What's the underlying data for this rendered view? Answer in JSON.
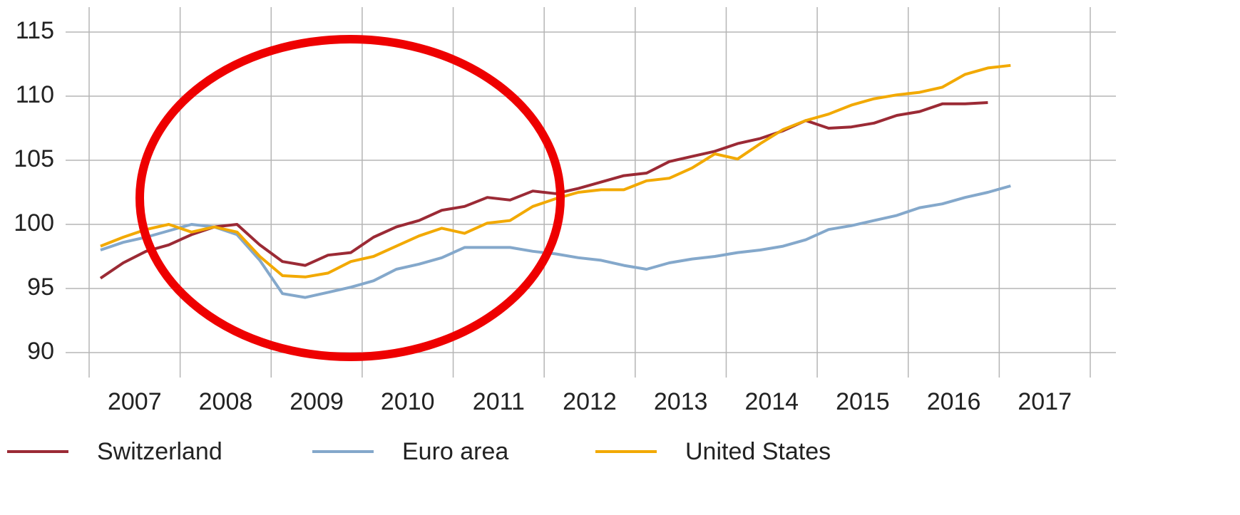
{
  "chart_data": {
    "type": "line",
    "categories": [
      "2007",
      "2008",
      "2009",
      "2010",
      "2011",
      "2012",
      "2013",
      "2014",
      "2015",
      "2016",
      "2017"
    ],
    "x": [
      2007.125,
      2007.375,
      2007.625,
      2007.875,
      2008.125,
      2008.375,
      2008.625,
      2008.875,
      2009.125,
      2009.375,
      2009.625,
      2009.875,
      2010.125,
      2010.375,
      2010.625,
      2010.875,
      2011.125,
      2011.375,
      2011.625,
      2011.875,
      2012.125,
      2012.375,
      2012.625,
      2012.875,
      2013.125,
      2013.375,
      2013.625,
      2013.875,
      2014.125,
      2014.375,
      2014.625,
      2014.875,
      2015.125,
      2015.375,
      2015.625,
      2015.875,
      2016.125,
      2016.375,
      2016.625,
      2016.875,
      2017.125
    ],
    "series": [
      {
        "name": "Switzerland",
        "color": "#9b2a35",
        "values": [
          95.8,
          97.0,
          97.9,
          98.4,
          99.2,
          99.8,
          100.0,
          98.4,
          97.1,
          96.8,
          97.6,
          97.8,
          99.0,
          99.8,
          100.3,
          101.1,
          101.4,
          102.1,
          101.9,
          102.6,
          102.4,
          102.8,
          103.3,
          103.8,
          104.0,
          104.9,
          105.3,
          105.7,
          106.3,
          106.7,
          107.3,
          108.1,
          107.5,
          107.6,
          107.9,
          108.5,
          108.8,
          109.4,
          109.4,
          109.5,
          null
        ]
      },
      {
        "name": "Euro area",
        "color": "#84a8cb",
        "values": [
          98.0,
          98.6,
          99.0,
          99.5,
          100.0,
          99.8,
          99.2,
          97.2,
          94.6,
          94.3,
          94.7,
          95.1,
          95.6,
          96.5,
          96.9,
          97.4,
          98.2,
          98.2,
          98.2,
          97.9,
          97.7,
          97.4,
          97.2,
          96.8,
          96.5,
          97.0,
          97.3,
          97.5,
          97.8,
          98.0,
          98.3,
          98.8,
          99.6,
          99.9,
          100.3,
          100.7,
          101.3,
          101.6,
          102.1,
          102.5,
          103.0
        ]
      },
      {
        "name": "United States",
        "color": "#f2a900",
        "values": [
          98.3,
          99.0,
          99.6,
          100.0,
          99.4,
          99.8,
          99.4,
          97.5,
          96.0,
          95.9,
          96.2,
          97.1,
          97.5,
          98.3,
          99.1,
          99.7,
          99.3,
          100.1,
          100.3,
          101.4,
          102.0,
          102.5,
          102.7,
          102.7,
          103.4,
          103.6,
          104.4,
          105.5,
          105.1,
          106.3,
          107.4,
          108.1,
          108.6,
          109.3,
          109.8,
          110.1,
          110.3,
          110.7,
          111.7,
          112.2,
          112.4
        ]
      }
    ],
    "xlim": [
      2007,
      2018
    ],
    "xticks": [
      2007,
      2008,
      2009,
      2010,
      2011,
      2012,
      2013,
      2014,
      2015,
      2016,
      2017,
      2018
    ],
    "ylim": [
      90,
      115
    ],
    "yticks": [
      90,
      95,
      100,
      105,
      110,
      115
    ],
    "grid": true,
    "legend": "bottom"
  }
}
